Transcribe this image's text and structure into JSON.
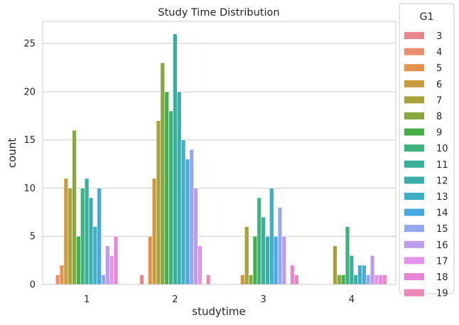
{
  "chart_data": {
    "type": "bar",
    "title": "Study Time Distribution",
    "xlabel": "studytime",
    "ylabel": "count",
    "categories": [
      "1",
      "2",
      "3",
      "4"
    ],
    "ylim": [
      0,
      27.3
    ],
    "yticks": [
      0,
      5,
      10,
      15,
      20,
      25
    ],
    "grid": true,
    "legend": {
      "title": "G1",
      "placement": "outside-right"
    },
    "series": [
      {
        "name": "3",
        "color": "#e8878b",
        "values": [
          0,
          1,
          0,
          0
        ]
      },
      {
        "name": "4",
        "color": "#e88f6e",
        "values": [
          1,
          0,
          0,
          0
        ]
      },
      {
        "name": "5",
        "color": "#e3934f",
        "values": [
          2,
          5,
          0,
          0
        ]
      },
      {
        "name": "6",
        "color": "#c89b3f",
        "values": [
          11,
          11,
          1,
          0
        ]
      },
      {
        "name": "7",
        "color": "#a9a23b",
        "values": [
          10,
          17,
          6,
          4
        ]
      },
      {
        "name": "8",
        "color": "#86a83e",
        "values": [
          16,
          23,
          1,
          1
        ]
      },
      {
        "name": "9",
        "color": "#45b04b",
        "values": [
          5,
          20,
          5,
          1
        ]
      },
      {
        "name": "10",
        "color": "#3db27d",
        "values": [
          10,
          18,
          9,
          6
        ]
      },
      {
        "name": "11",
        "color": "#39b19a",
        "values": [
          11,
          26,
          7,
          3
        ]
      },
      {
        "name": "12",
        "color": "#39aeaa",
        "values": [
          9,
          20,
          5,
          1
        ]
      },
      {
        "name": "13",
        "color": "#3fb0c3",
        "values": [
          6,
          15,
          10,
          2
        ]
      },
      {
        "name": "14",
        "color": "#47a9df",
        "values": [
          10,
          13,
          5,
          2
        ]
      },
      {
        "name": "15",
        "color": "#93a8ed",
        "values": [
          1,
          14,
          8,
          1
        ]
      },
      {
        "name": "16",
        "color": "#bd9ceb",
        "values": [
          4,
          10,
          5,
          3
        ]
      },
      {
        "name": "17",
        "color": "#e592ec",
        "values": [
          3,
          4,
          0,
          1
        ]
      },
      {
        "name": "18",
        "color": "#ea84d8",
        "values": [
          5,
          0,
          2,
          1
        ]
      },
      {
        "name": "19",
        "color": "#ec87b6",
        "values": [
          0,
          1,
          1,
          1
        ]
      }
    ]
  }
}
